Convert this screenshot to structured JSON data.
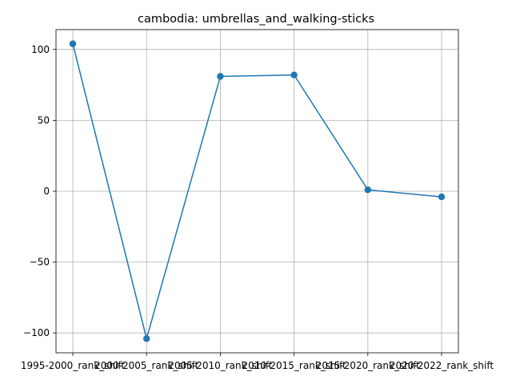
{
  "chart_data": {
    "type": "line",
    "title": "cambodia: umbrellas_and_walking-sticks",
    "xlabel": "",
    "ylabel": "",
    "categories": [
      "1995-2000_rank_shift",
      "2000-2005_rank_shift",
      "2005-2010_rank_shift",
      "2010-2015_rank_shift",
      "2015-2020_rank_shift",
      "2020-2022_rank_shift"
    ],
    "series": [
      {
        "values": [
          104,
          -104,
          81,
          82,
          1,
          -4
        ]
      }
    ],
    "ylim": [
      -114,
      114
    ],
    "yticks": [
      -100,
      -50,
      0,
      50,
      100
    ],
    "ytick_labels": [
      "−100",
      "−50",
      "0",
      "50",
      "100"
    ],
    "grid": true,
    "color": "#1f77b4"
  }
}
